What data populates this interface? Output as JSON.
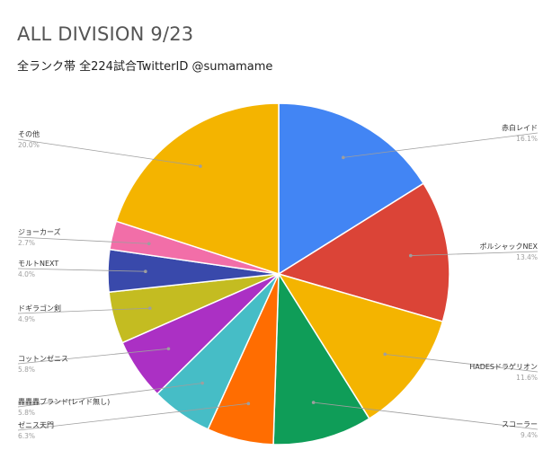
{
  "chart_data": {
    "type": "pie",
    "title": "ALL DIVISION 9/23",
    "subtitle": "全ランク帯 全224試合TwitterID @sumamame",
    "legend": "labels-with-leader-lines",
    "slices": [
      {
        "label": "赤白レイド",
        "value": 16.1,
        "pct_text": "16.1%",
        "color": "#4285f4",
        "side": "right"
      },
      {
        "label": "ポルシャックNEX",
        "value": 13.4,
        "pct_text": "13.4%",
        "color": "#db4437",
        "side": "right"
      },
      {
        "label": "HADESドラゲリオン",
        "value": 11.6,
        "pct_text": "11.6%",
        "color": "#f4b400",
        "side": "right"
      },
      {
        "label": "スコーラー",
        "value": 9.4,
        "pct_text": "9.4%",
        "color": "#0f9d58",
        "side": "right"
      },
      {
        "label": "ゼニス天門",
        "value": 6.3,
        "pct_text": "6.3%",
        "color": "#ff6d01",
        "side": "left"
      },
      {
        "label": "轟轟轟ブランド(レイド無し)",
        "value": 5.8,
        "pct_text": "5.8%",
        "color": "#46bdc6",
        "side": "left"
      },
      {
        "label": "コットンゼニス",
        "value": 5.8,
        "pct_text": "5.8%",
        "color": "#ab30c4",
        "side": "left"
      },
      {
        "label": "ドギラゴン剣",
        "value": 4.9,
        "pct_text": "4.9%",
        "color": "#c4bc21",
        "side": "left"
      },
      {
        "label": "モルトNEXT",
        "value": 4.0,
        "pct_text": "4.0%",
        "color": "#3949ab",
        "side": "left"
      },
      {
        "label": "ジョーカーズ",
        "value": 2.7,
        "pct_text": "2.7%",
        "color": "#f26ea8",
        "side": "left"
      },
      {
        "label": "その他",
        "value": 20.0,
        "pct_text": "20.0%",
        "color": "#f4b400",
        "side": "left"
      }
    ]
  }
}
